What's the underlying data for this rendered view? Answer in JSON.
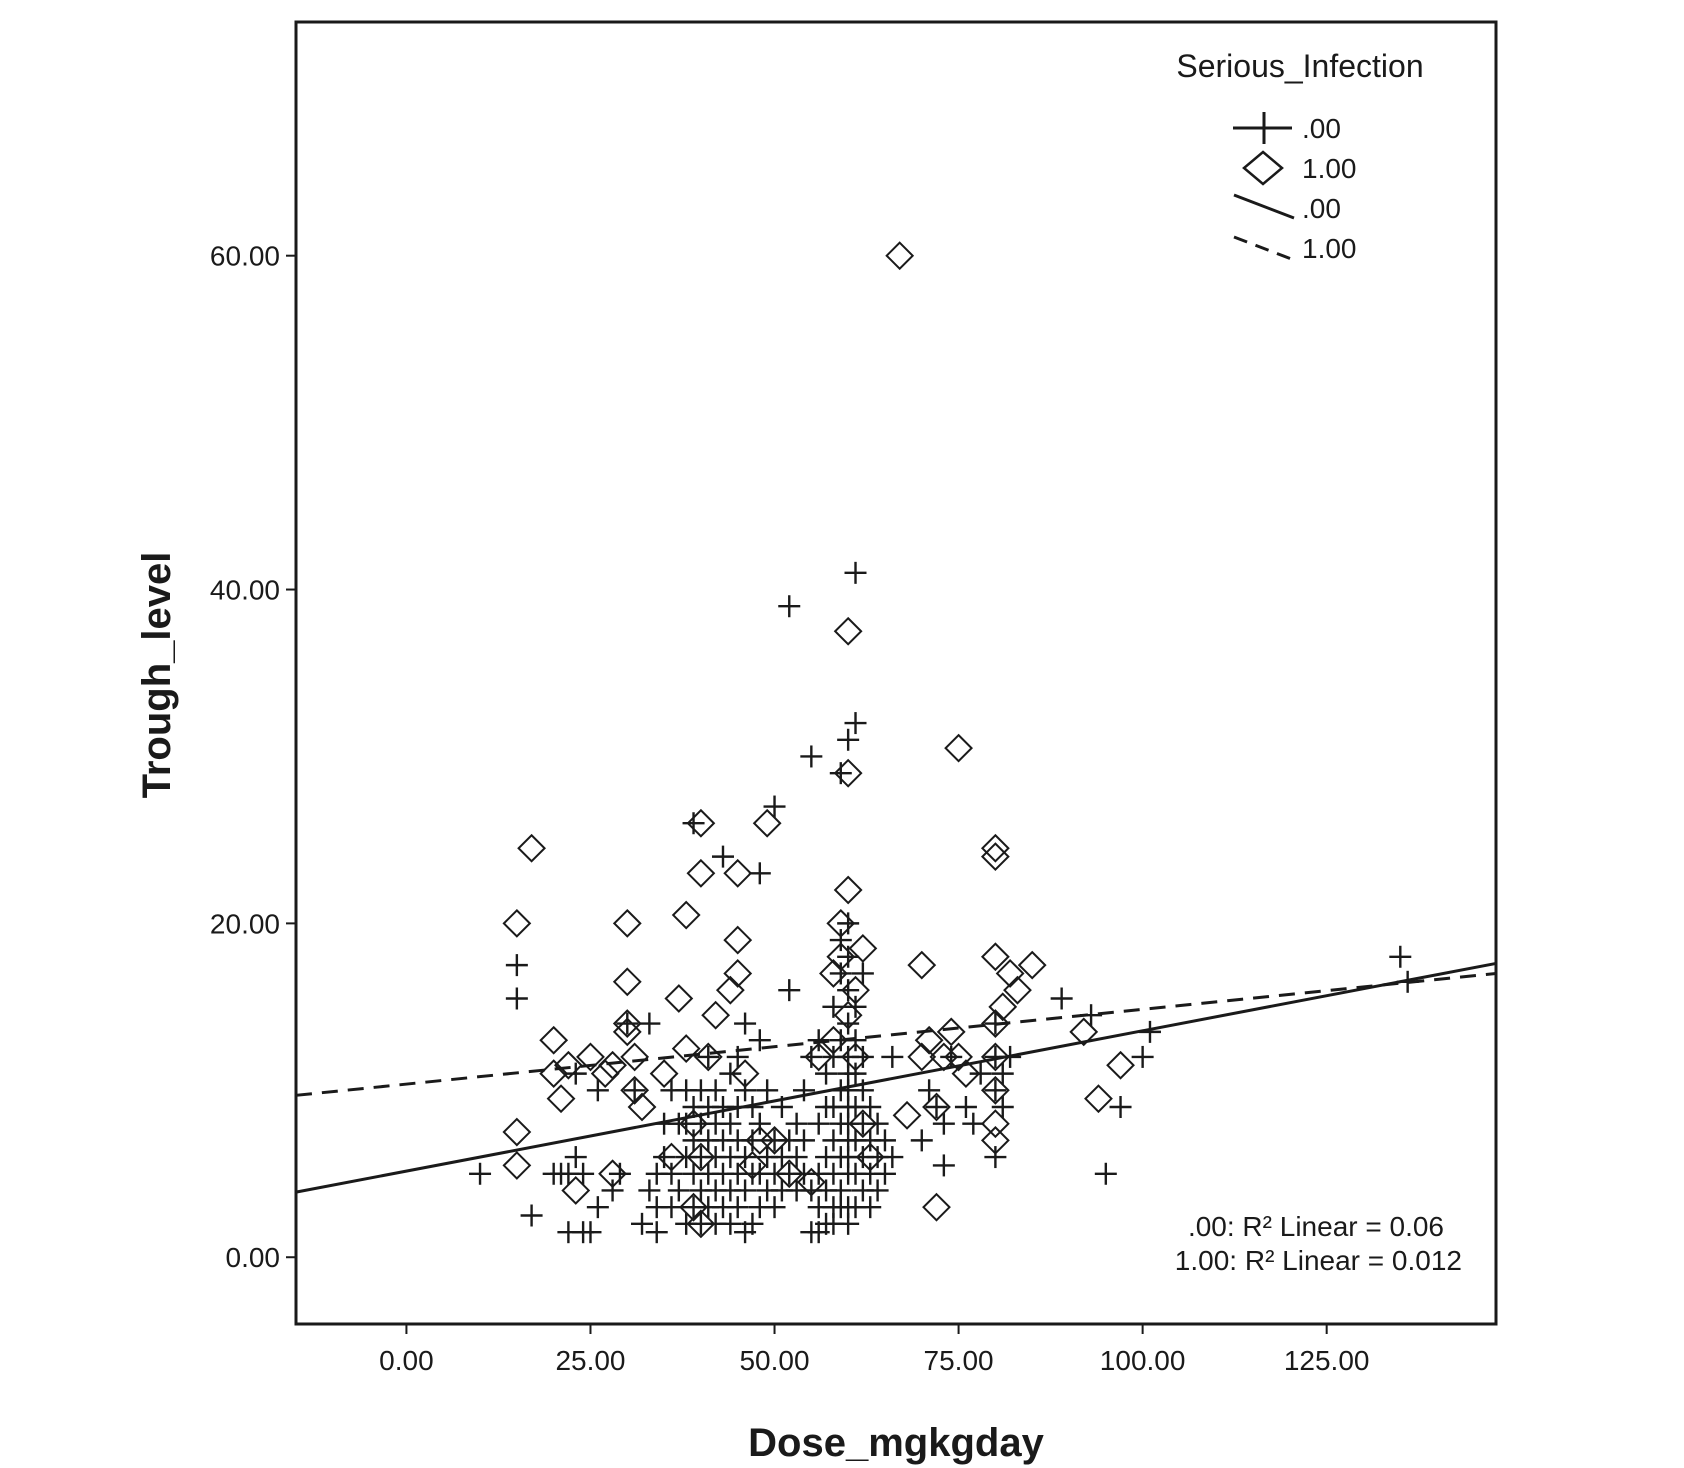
{
  "chart_data": {
    "type": "scatter",
    "xlabel": "Dose_mgkgday",
    "ylabel": "Trough_level",
    "xlim": [
      -15,
      148
    ],
    "ylim": [
      -4,
      74
    ],
    "x_ticks": [
      0,
      25,
      50,
      75,
      100,
      125
    ],
    "x_tick_labels": [
      "0.00",
      "25.00",
      "50.00",
      "75.00",
      "100.00",
      "125.00"
    ],
    "y_ticks": [
      0,
      20,
      40,
      60
    ],
    "y_tick_labels": [
      "0.00",
      "20.00",
      "40.00",
      "60.00"
    ],
    "grid": false,
    "legend": {
      "title": "Serious_Infection",
      "placement": "top-right",
      "entries": [
        {
          "label": ".00",
          "symbol": "plus"
        },
        {
          "label": "1.00",
          "symbol": "diamond"
        },
        {
          "label": ".00",
          "symbol": "solid-line"
        },
        {
          "label": "1.00",
          "symbol": "dashed-line"
        }
      ]
    },
    "annotations": [
      ".00: R² Linear = 0.06",
      "1.00: R² Linear = 0.012"
    ],
    "series": [
      {
        "name": ".00",
        "marker": "plus",
        "fit": {
          "style": "solid",
          "x": [
            -15,
            148
          ],
          "y": [
            3.9,
            17.6
          ]
        },
        "points": [
          [
            10,
            5
          ],
          [
            15,
            17.5
          ],
          [
            15,
            15.5
          ],
          [
            17,
            2.5
          ],
          [
            20,
            5
          ],
          [
            21,
            5
          ],
          [
            22,
            1.5
          ],
          [
            22,
            5
          ],
          [
            23,
            6
          ],
          [
            23,
            11
          ],
          [
            24,
            1.5
          ],
          [
            24,
            5
          ],
          [
            25,
            1.5
          ],
          [
            26,
            10
          ],
          [
            26,
            3
          ],
          [
            28,
            4
          ],
          [
            29,
            5
          ],
          [
            30,
            14
          ],
          [
            31,
            10
          ],
          [
            32,
            2
          ],
          [
            33,
            4
          ],
          [
            33,
            14
          ],
          [
            34,
            1.5
          ],
          [
            34,
            5
          ],
          [
            34,
            3
          ],
          [
            35,
            8
          ],
          [
            35,
            6
          ],
          [
            36,
            10
          ],
          [
            36,
            3
          ],
          [
            36,
            5
          ],
          [
            37,
            8
          ],
          [
            37,
            4
          ],
          [
            38,
            2
          ],
          [
            38,
            6
          ],
          [
            38,
            8
          ],
          [
            38,
            10
          ],
          [
            39,
            3
          ],
          [
            39,
            5
          ],
          [
            39,
            7
          ],
          [
            39,
            9
          ],
          [
            39,
            26
          ],
          [
            40,
            2
          ],
          [
            40,
            4
          ],
          [
            40,
            6
          ],
          [
            40,
            8
          ],
          [
            40,
            10
          ],
          [
            41,
            3
          ],
          [
            41,
            5
          ],
          [
            41,
            7
          ],
          [
            41,
            9
          ],
          [
            41,
            12
          ],
          [
            42,
            2
          ],
          [
            42,
            4
          ],
          [
            42,
            6
          ],
          [
            42,
            8
          ],
          [
            42,
            10
          ],
          [
            43,
            3
          ],
          [
            43,
            5
          ],
          [
            43,
            7
          ],
          [
            43,
            9
          ],
          [
            43,
            24
          ],
          [
            44,
            2
          ],
          [
            44,
            4
          ],
          [
            44,
            6
          ],
          [
            44,
            8
          ],
          [
            44,
            11
          ],
          [
            45,
            3
          ],
          [
            45,
            5
          ],
          [
            45,
            7
          ],
          [
            45,
            9
          ],
          [
            45,
            12
          ],
          [
            46,
            1.5
          ],
          [
            46,
            4
          ],
          [
            46,
            6
          ],
          [
            46,
            10
          ],
          [
            46,
            14
          ],
          [
            47,
            2
          ],
          [
            47,
            5
          ],
          [
            47,
            7
          ],
          [
            47,
            9
          ],
          [
            48,
            23
          ],
          [
            48,
            3
          ],
          [
            48,
            5
          ],
          [
            48,
            8
          ],
          [
            48,
            13
          ],
          [
            49,
            4
          ],
          [
            49,
            6
          ],
          [
            49,
            10
          ],
          [
            50,
            3
          ],
          [
            50,
            5
          ],
          [
            50,
            7
          ],
          [
            50,
            27
          ],
          [
            51,
            4
          ],
          [
            51,
            6
          ],
          [
            51,
            9
          ],
          [
            52,
            39
          ],
          [
            52,
            16
          ],
          [
            52,
            5
          ],
          [
            52,
            7
          ],
          [
            53,
            4
          ],
          [
            53,
            6
          ],
          [
            53,
            8
          ],
          [
            54,
            5
          ],
          [
            54,
            7
          ],
          [
            54,
            10
          ],
          [
            55,
            12
          ],
          [
            55,
            30
          ],
          [
            55,
            1.5
          ],
          [
            55,
            4
          ],
          [
            56,
            1.5
          ],
          [
            56,
            3
          ],
          [
            56,
            5
          ],
          [
            56,
            8
          ],
          [
            56,
            13
          ],
          [
            57,
            2
          ],
          [
            57,
            4
          ],
          [
            57,
            6
          ],
          [
            57,
            9
          ],
          [
            57,
            11
          ],
          [
            58,
            2
          ],
          [
            58,
            3
          ],
          [
            58,
            5
          ],
          [
            58,
            7
          ],
          [
            58,
            9
          ],
          [
            58,
            12
          ],
          [
            58,
            15
          ],
          [
            59,
            3
          ],
          [
            59,
            4
          ],
          [
            59,
            6
          ],
          [
            59,
            8
          ],
          [
            59,
            10
          ],
          [
            59,
            13
          ],
          [
            59,
            17
          ],
          [
            59,
            19
          ],
          [
            59,
            29
          ],
          [
            60,
            2
          ],
          [
            60,
            3
          ],
          [
            60,
            5
          ],
          [
            60,
            6
          ],
          [
            60,
            7
          ],
          [
            60,
            8
          ],
          [
            60,
            9
          ],
          [
            60,
            10
          ],
          [
            60,
            11
          ],
          [
            60,
            12
          ],
          [
            60,
            14
          ],
          [
            60,
            16
          ],
          [
            60,
            18
          ],
          [
            60,
            20
          ],
          [
            60,
            31
          ],
          [
            61,
            3
          ],
          [
            61,
            5
          ],
          [
            61,
            7
          ],
          [
            61,
            9
          ],
          [
            61,
            11
          ],
          [
            61,
            13
          ],
          [
            61,
            15
          ],
          [
            61,
            32
          ],
          [
            61,
            41
          ],
          [
            62,
            4
          ],
          [
            62,
            6
          ],
          [
            62,
            8
          ],
          [
            62,
            10
          ],
          [
            62,
            12
          ],
          [
            62,
            17
          ],
          [
            63,
            3
          ],
          [
            63,
            5
          ],
          [
            63,
            7
          ],
          [
            63,
            9
          ],
          [
            64,
            4
          ],
          [
            64,
            6
          ],
          [
            64,
            8
          ],
          [
            65,
            5
          ],
          [
            65,
            7
          ],
          [
            66,
            6
          ],
          [
            66,
            12
          ],
          [
            70,
            7
          ],
          [
            71,
            10
          ],
          [
            72,
            9
          ],
          [
            73,
            5.5
          ],
          [
            73,
            8
          ],
          [
            74,
            12
          ],
          [
            76,
            9
          ],
          [
            77,
            8
          ],
          [
            78,
            11
          ],
          [
            80,
            6
          ],
          [
            80,
            10
          ],
          [
            80,
            12
          ],
          [
            80,
            14
          ],
          [
            81,
            9
          ],
          [
            81,
            11
          ],
          [
            82,
            12
          ],
          [
            89,
            15.5
          ],
          [
            93,
            14.5
          ],
          [
            97,
            9
          ],
          [
            95,
            5
          ],
          [
            100,
            12
          ],
          [
            101,
            13.5
          ],
          [
            135,
            18
          ],
          [
            136,
            16.5
          ]
        ]
      },
      {
        "name": "1.00",
        "marker": "diamond",
        "fit": {
          "style": "dashed",
          "x": [
            -15,
            148
          ],
          "y": [
            9.7,
            17.0
          ]
        },
        "points": [
          [
            15,
            20
          ],
          [
            15,
            7.5
          ],
          [
            15,
            5.5
          ],
          [
            17,
            24.5
          ],
          [
            20,
            13
          ],
          [
            20,
            11
          ],
          [
            21,
            9.5
          ],
          [
            22,
            11.5
          ],
          [
            23,
            4
          ],
          [
            25,
            12
          ],
          [
            27,
            11
          ],
          [
            28,
            11.5
          ],
          [
            28,
            5
          ],
          [
            30,
            20
          ],
          [
            30,
            16.5
          ],
          [
            30,
            14
          ],
          [
            30,
            13.5
          ],
          [
            31,
            12
          ],
          [
            31,
            10
          ],
          [
            32,
            9
          ],
          [
            35,
            11
          ],
          [
            36,
            6
          ],
          [
            37,
            15.5
          ],
          [
            38,
            20.5
          ],
          [
            38,
            12.5
          ],
          [
            39,
            3
          ],
          [
            39,
            8
          ],
          [
            40,
            23
          ],
          [
            40,
            26
          ],
          [
            40,
            6
          ],
          [
            40,
            2
          ],
          [
            41,
            12
          ],
          [
            42,
            14.5
          ],
          [
            44,
            16
          ],
          [
            45,
            23
          ],
          [
            45,
            19
          ],
          [
            45,
            17
          ],
          [
            46,
            11
          ],
          [
            47,
            5.5
          ],
          [
            48,
            7
          ],
          [
            49,
            26
          ],
          [
            50,
            7
          ],
          [
            52,
            5
          ],
          [
            55,
            4.5
          ],
          [
            56,
            12
          ],
          [
            58,
            13
          ],
          [
            58,
            17
          ],
          [
            59,
            20
          ],
          [
            59,
            18
          ],
          [
            60,
            37.5
          ],
          [
            60,
            29
          ],
          [
            60,
            22
          ],
          [
            60,
            14.5
          ],
          [
            61,
            16
          ],
          [
            61,
            12
          ],
          [
            62,
            8
          ],
          [
            62,
            18.5
          ],
          [
            63,
            6
          ],
          [
            67,
            60
          ],
          [
            68,
            8.5
          ],
          [
            70,
            17.5
          ],
          [
            70,
            12
          ],
          [
            71,
            13
          ],
          [
            72,
            3
          ],
          [
            72,
            9
          ],
          [
            73,
            12
          ],
          [
            74,
            13.5
          ],
          [
            75,
            30.5
          ],
          [
            75,
            12
          ],
          [
            76,
            11
          ],
          [
            80,
            24.5
          ],
          [
            80,
            24
          ],
          [
            80,
            18
          ],
          [
            80,
            14
          ],
          [
            80,
            12
          ],
          [
            80,
            10
          ],
          [
            80,
            8
          ],
          [
            80,
            7
          ],
          [
            81,
            15
          ],
          [
            82,
            17
          ],
          [
            83,
            16
          ],
          [
            85,
            17.5
          ],
          [
            92,
            13.5
          ],
          [
            94,
            9.5
          ],
          [
            97,
            11.5
          ]
        ]
      }
    ]
  }
}
